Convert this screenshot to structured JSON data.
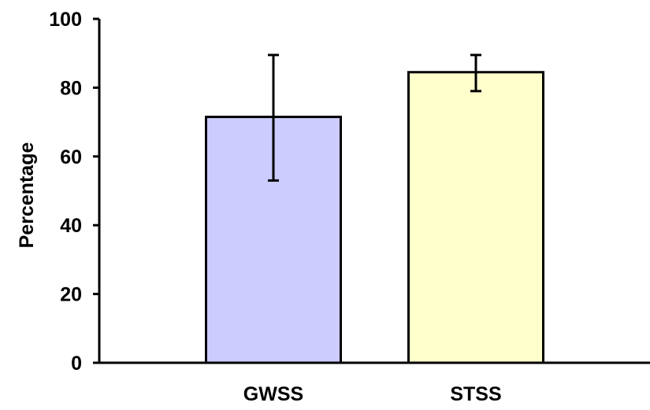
{
  "chart_data": {
    "type": "bar",
    "categories": [
      "GWSS",
      "STSS"
    ],
    "values": [
      71.5,
      84.5
    ],
    "errors": [
      {
        "low": 53.0,
        "high": 89.5
      },
      {
        "low": 79.0,
        "high": 89.5
      }
    ],
    "colors": [
      "#ccccff",
      "#ffffcc"
    ],
    "xlabel": "",
    "ylabel": "Percentage",
    "ylim": [
      0,
      100
    ],
    "yticks": [
      0,
      20,
      40,
      60,
      80,
      100
    ],
    "ytick_labels": [
      "0",
      "20",
      "40",
      "60",
      "80",
      "100"
    ],
    "grid": false,
    "legend": "none"
  }
}
